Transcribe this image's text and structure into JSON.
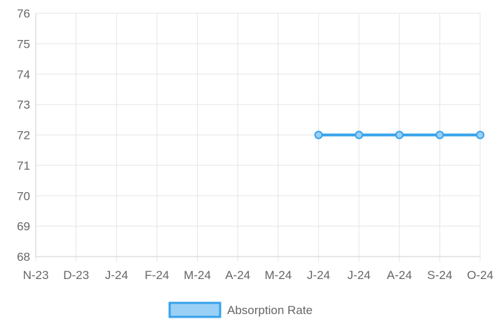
{
  "chart_data": {
    "type": "line",
    "categories": [
      "N-23",
      "D-23",
      "J-24",
      "F-24",
      "M-24",
      "A-24",
      "M-24",
      "J-24",
      "J-24",
      "A-24",
      "S-24",
      "O-24"
    ],
    "series": [
      {
        "name": "Absorption Rate",
        "values": [
          null,
          null,
          null,
          null,
          null,
          null,
          null,
          72,
          72,
          72,
          72,
          72
        ],
        "color": "#36A2EB",
        "fill_color": "#9AD0F5"
      }
    ],
    "ylim": [
      68,
      76
    ],
    "yticks": [
      68,
      69,
      70,
      71,
      72,
      73,
      74,
      75,
      76
    ],
    "grid": true,
    "legend_position": "bottom",
    "title": "",
    "xlabel": "",
    "ylabel": ""
  }
}
